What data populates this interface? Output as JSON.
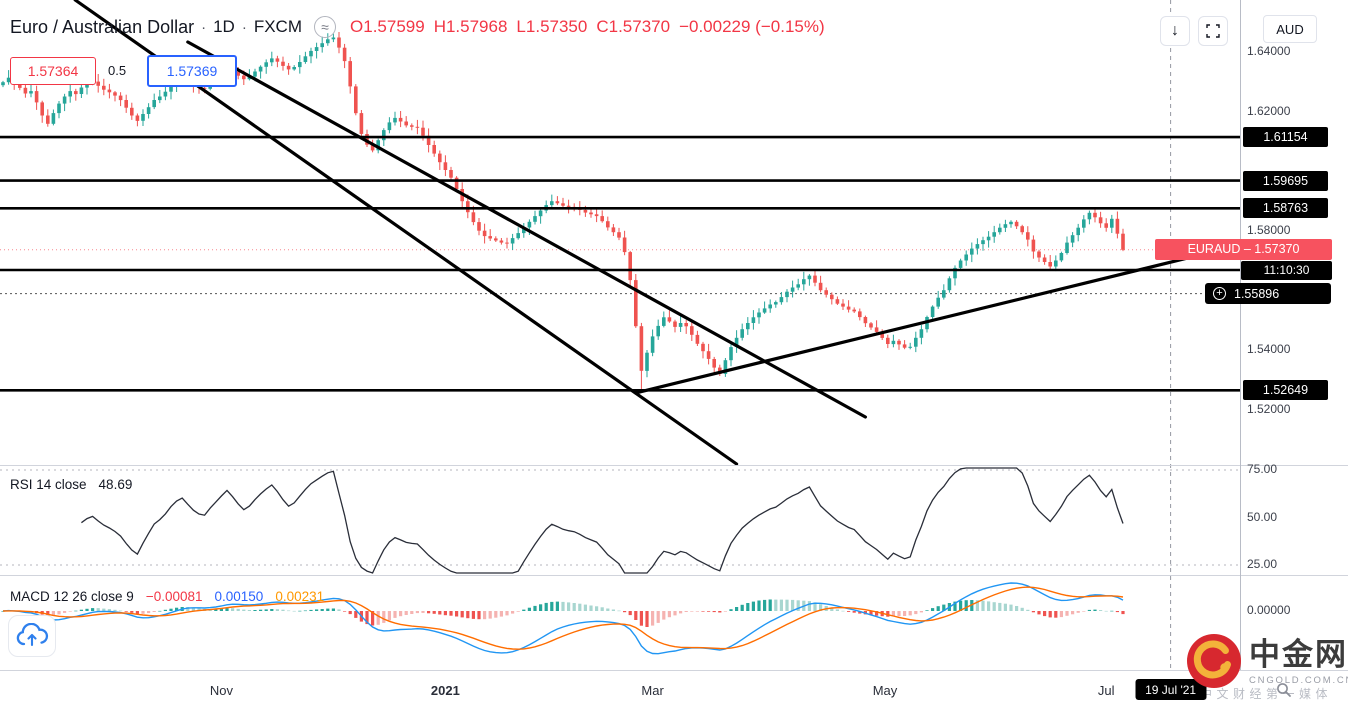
{
  "header": {
    "symbol_title": "Euro / Australian Dollar",
    "separator": "·",
    "interval": "1D",
    "exchange": "FXCM",
    "data_mode_icon": "≈",
    "ohlc": {
      "o_label": "O",
      "o": "1.57599",
      "h_label": "H",
      "h": "1.57968",
      "l_label": "L",
      "l": "1.57350",
      "c_label": "C",
      "c": "1.57370",
      "change": "−0.00229 (−0.15%)"
    }
  },
  "tool_labels": {
    "left_price": "1.57364",
    "ratio": "0.5",
    "right_price": "1.57369"
  },
  "toolbar": {
    "download_icon": "↓"
  },
  "right_axis": {
    "currency": "AUD",
    "scale_labels": [
      {
        "text": "1.64000",
        "price": 1.64
      },
      {
        "text": "1.62000",
        "price": 1.62
      },
      {
        "text": "1.58000",
        "price": 1.58
      },
      {
        "text": "1.54000",
        "price": 1.54
      },
      {
        "text": "1.52000",
        "price": 1.52
      }
    ],
    "line_badges": [
      {
        "text": "1.61154",
        "price": 1.61154
      },
      {
        "text": "1.59695",
        "price": 1.59695
      },
      {
        "text": "1.58763",
        "price": 1.58763
      },
      {
        "text": "1.52649",
        "price": 1.52649
      }
    ],
    "alert_badge": {
      "icon": "+",
      "text": "1.55896",
      "price": 1.55896
    },
    "price_badge": {
      "text": "EURAUD – 1.57370",
      "price": 1.5737,
      "countdown": "11:10:30"
    },
    "rsi_labels": [
      {
        "text": "75.00",
        "value": 75
      },
      {
        "text": "50.00",
        "value": 50
      },
      {
        "text": "25.00",
        "value": 25
      }
    ],
    "macd_labels": [
      {
        "text": "0.00000",
        "value": 0
      }
    ]
  },
  "panes": {
    "rsi_legend": {
      "title": "RSI 14 close",
      "value": "48.69"
    },
    "macd_legend": {
      "title": "MACD 12 26 close 9",
      "hist": "−0.00081",
      "macd": "0.00150",
      "signal": "0.00231"
    }
  },
  "time_axis": {
    "months": [
      {
        "label": "Nov",
        "bar": 39
      },
      {
        "label": "2021",
        "bar": 79
      },
      {
        "label": "Mar",
        "bar": 116
      },
      {
        "label": "May",
        "bar": 157.5
      },
      {
        "label": "Jul",
        "bar": 197
      }
    ],
    "crosshair_badge": {
      "label": "19 Jul '21",
      "bar": 208.5
    }
  },
  "watermark": {
    "text": "中文财经第一媒体"
  },
  "logo": {
    "cn": "中金网",
    "en": "CNGOLD.COM.CN"
  },
  "chart_data": {
    "type": "candlestick",
    "title": "Euro / Australian Dollar · 1D · FXCM",
    "symbol": "EURAUD",
    "interval": "1D",
    "source": "FXCM",
    "current_ohlc": {
      "open": 1.57599,
      "high": 1.57968,
      "low": 1.5735,
      "close": 1.5737,
      "change": -0.00229,
      "change_pct": -0.15
    },
    "price_axis_visible_range": [
      1.502,
      1.658
    ],
    "x_axis_labels": [
      "Nov",
      "2021",
      "Mar",
      "May",
      "Jul"
    ],
    "closes": [
      1.63,
      1.6315,
      1.6293,
      1.6281,
      1.6262,
      1.627,
      1.6232,
      1.6188,
      1.616,
      1.6196,
      1.6228,
      1.6252,
      1.627,
      1.626,
      1.6282,
      1.6295,
      1.6302,
      1.6288,
      1.6275,
      1.6266,
      1.6255,
      1.624,
      1.6214,
      1.6188,
      1.617,
      1.6193,
      1.6216,
      1.624,
      1.6252,
      1.6268,
      1.629,
      1.6308,
      1.6318,
      1.6304,
      1.629,
      1.6281,
      1.6278,
      1.6296,
      1.6312,
      1.633,
      1.6348,
      1.6336,
      1.6322,
      1.631,
      1.6319,
      1.6336,
      1.6352,
      1.6367,
      1.638,
      1.6369,
      1.6355,
      1.6343,
      1.6351,
      1.6368,
      1.6387,
      1.6405,
      1.6418,
      1.6431,
      1.6444,
      1.645,
      1.6416,
      1.6371,
      1.6286,
      1.6196,
      1.6126,
      1.609,
      1.6071,
      1.6105,
      1.6139,
      1.6165,
      1.618,
      1.6168,
      1.6155,
      1.615,
      1.6147,
      1.612,
      1.6089,
      1.606,
      1.6031,
      1.6005,
      1.5979,
      1.5941,
      1.59,
      1.5863,
      1.583,
      1.5801,
      1.5783,
      1.5775,
      1.5768,
      1.5761,
      1.5758,
      1.5776,
      1.5793,
      1.5812,
      1.5831,
      1.585,
      1.5869,
      1.5887,
      1.59,
      1.5893,
      1.5885,
      1.5881,
      1.5878,
      1.5871,
      1.5862,
      1.5856,
      1.585,
      1.5833,
      1.5812,
      1.5796,
      1.5778,
      1.5729,
      1.5635,
      1.548,
      1.533,
      1.5391,
      1.5446,
      1.5481,
      1.551,
      1.5496,
      1.5478,
      1.5491,
      1.548,
      1.5451,
      1.5421,
      1.5396,
      1.537,
      1.5341,
      1.532,
      1.5366,
      1.541,
      1.5441,
      1.547,
      1.5491,
      1.551,
      1.5526,
      1.554,
      1.5553,
      1.5561,
      1.5578,
      1.5596,
      1.561,
      1.5621,
      1.5638,
      1.565,
      1.5626,
      1.5601,
      1.5586,
      1.5571,
      1.5556,
      1.5546,
      1.5536,
      1.553,
      1.5511,
      1.549,
      1.5476,
      1.5461,
      1.5441,
      1.542,
      1.5431,
      1.5419,
      1.5408,
      1.5411,
      1.5441,
      1.547,
      1.5511,
      1.5546,
      1.5576,
      1.5601,
      1.5641,
      1.5676,
      1.5701,
      1.5721,
      1.5741,
      1.5756,
      1.5769,
      1.5781,
      1.5796,
      1.5811,
      1.5823,
      1.5831,
      1.5816,
      1.5796,
      1.5771,
      1.5731,
      1.5711,
      1.5696,
      1.5681,
      1.5701,
      1.5726,
      1.5761,
      1.5786,
      1.5811,
      1.5839,
      1.5861,
      1.5846,
      1.5826,
      1.5811,
      1.5841,
      1.5791,
      1.5737
    ],
    "special_low": {
      "bar": 114,
      "price": 1.52649
    },
    "horizontal_lines": [
      1.61154,
      1.59695,
      1.58763,
      1.5669,
      1.52649
    ],
    "alert_line": 1.55896,
    "last_price": 1.5737,
    "trendlines": [
      {
        "x1_bar": 12.9,
        "p1": 1.6576,
        "x2_bar": 131,
        "p2": 1.5017
      },
      {
        "x1_bar": 33,
        "p1": 1.6435,
        "x2_bar": 154,
        "p2": 1.5175
      },
      {
        "x1_bar": 113,
        "p1": 1.5256,
        "x2_bar": 211.5,
        "p2": 1.5709
      }
    ],
    "vertical_dashed_bar": 208.5,
    "indicators": {
      "rsi": {
        "period": 14,
        "bands": [
          75,
          25
        ],
        "current": 48.69
      },
      "macd": {
        "fast": 12,
        "slow": 26,
        "signal": 9,
        "current": {
          "hist": -0.00081,
          "macd": 0.0015,
          "signal": 0.00231
        }
      }
    },
    "colors": {
      "up": "#26a69a",
      "down": "#ef5350",
      "macd_line": "#2196f3",
      "signal_line": "#ff6d00",
      "rsi_line": "#2a2e39",
      "drawing": "#000000",
      "badge_red": "#f7525f",
      "accent_blue": "#2962ff",
      "neg_red": "#f23645"
    }
  }
}
